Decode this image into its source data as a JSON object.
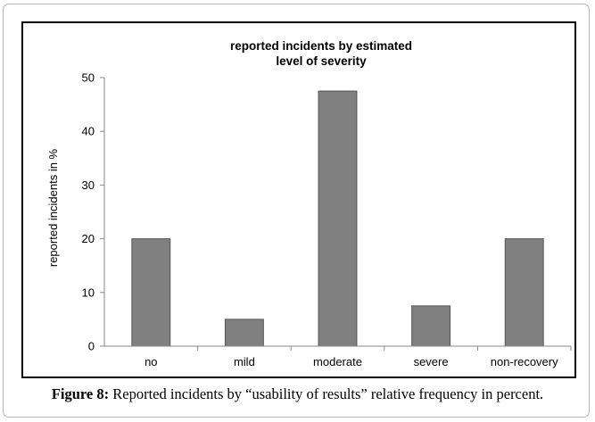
{
  "caption": {
    "label": "Figure 8:",
    "text": " Reported incidents by “usability of results” relative frequency in percent."
  },
  "chart_data": {
    "type": "bar",
    "title_lines": [
      "reported incidents by estimated",
      "level of severity"
    ],
    "xlabel": "",
    "ylabel": "reported incidents in %",
    "categories": [
      "no",
      "mild",
      "moderate",
      "severe",
      "non-recovery"
    ],
    "values": [
      20,
      5,
      47.5,
      7.5,
      20
    ],
    "ylim": [
      0,
      50
    ],
    "yticks": [
      0,
      10,
      20,
      30,
      40,
      50
    ],
    "bar_color": "#808080",
    "grid": false,
    "legend": "none"
  }
}
